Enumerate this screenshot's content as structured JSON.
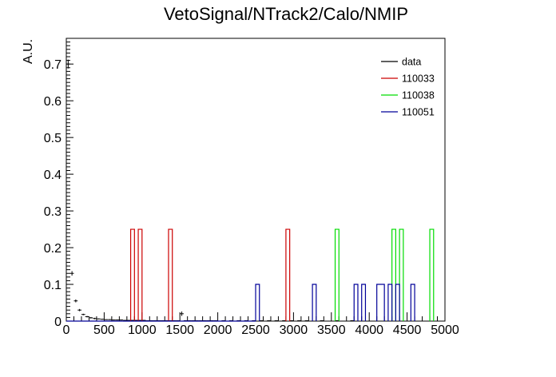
{
  "chart_data": {
    "type": "line",
    "title": "VetoSignal/NTrack2/Calo/NMIP",
    "xlabel": "",
    "ylabel": "A.U.",
    "xlim": [
      0,
      5000
    ],
    "ylim": [
      0,
      0.77
    ],
    "xticks": [
      "0",
      "500",
      "1000",
      "1500",
      "2000",
      "2500",
      "3000",
      "3500",
      "4000",
      "4500",
      "5000"
    ],
    "yticks": [
      "0",
      "0.1",
      "0.2",
      "0.3",
      "0.4",
      "0.5",
      "0.6",
      "0.7"
    ],
    "legend_position": "top-right",
    "series": [
      {
        "name": "data",
        "kind": "points",
        "color": "#000000",
        "bin_width": 50,
        "x": [
          25,
          75,
          125,
          175,
          225,
          275,
          325,
          375,
          425,
          475,
          525,
          575,
          625,
          675,
          725,
          775,
          825,
          875,
          925,
          975,
          1025,
          1075,
          1125,
          1175,
          1225,
          1275,
          1325,
          1375,
          1425,
          1475,
          1525,
          1575,
          1625,
          1675,
          1725,
          1775,
          1825,
          1875,
          1925,
          1975,
          2075,
          2175,
          2275,
          2375,
          2475,
          2575,
          2675,
          2775,
          2875,
          2975,
          3075,
          3175,
          3375,
          3575,
          3775
        ],
        "y": [
          0.7,
          0.13,
          0.055,
          0.03,
          0.018,
          0.012,
          0.009,
          0.007,
          0.006,
          0.005,
          0.004,
          0.004,
          0.003,
          0.003,
          0.003,
          0.002,
          0.002,
          0.002,
          0.002,
          0.002,
          0.002,
          0.001,
          0.001,
          0.001,
          0.001,
          0.001,
          0.001,
          0.001,
          0.001,
          0.001,
          0.02,
          0.001,
          0.001,
          0.001,
          0.001,
          0.001,
          0.001,
          0.001,
          0.001,
          0.001,
          0.001,
          0.001,
          0.001,
          0.001,
          0.001,
          0.001,
          0.001,
          0.001,
          0.001,
          0.001,
          0.001,
          0.001,
          0.001,
          0.001,
          0.001
        ],
        "yerr": [
          0.012,
          0.006,
          0.004,
          0.003,
          0.002,
          0.002,
          0.002,
          0.002,
          0.001,
          0.001,
          0.001,
          0.001,
          0.001,
          0.001,
          0.001,
          0.001,
          0.001,
          0.001,
          0.001,
          0.001,
          0.001,
          0.001,
          0.001,
          0.001,
          0.001,
          0.001,
          0.001,
          0.001,
          0.001,
          0.001,
          0.006,
          0.001,
          0.001,
          0.001,
          0.001,
          0.001,
          0.001,
          0.001,
          0.001,
          0.001,
          0.001,
          0.001,
          0.001,
          0.001,
          0.001,
          0.001,
          0.001,
          0.001,
          0.001,
          0.001,
          0.001,
          0.001,
          0.001,
          0.001,
          0.001
        ]
      },
      {
        "name": "110033",
        "kind": "hist",
        "color": "#cc0000",
        "bins": [
          [
            850,
            900,
            0.25
          ],
          [
            950,
            1000,
            0.25
          ],
          [
            1350,
            1400,
            0.25
          ],
          [
            2900,
            2950,
            0.25
          ]
        ]
      },
      {
        "name": "110038",
        "kind": "hist",
        "color": "#00dd00",
        "bins": [
          [
            3550,
            3600,
            0.25
          ],
          [
            4300,
            4350,
            0.25
          ],
          [
            4400,
            4450,
            0.25
          ],
          [
            4800,
            4850,
            0.25
          ]
        ]
      },
      {
        "name": "110051",
        "kind": "hist",
        "color": "#000099",
        "bins": [
          [
            0,
            2500,
            0.0
          ],
          [
            2500,
            2550,
            0.1
          ],
          [
            3250,
            3300,
            0.1
          ],
          [
            3800,
            3850,
            0.1
          ],
          [
            3900,
            3950,
            0.1
          ],
          [
            4100,
            4200,
            0.1
          ],
          [
            4250,
            4300,
            0.1
          ],
          [
            4350,
            4400,
            0.1
          ],
          [
            4550,
            4600,
            0.1
          ]
        ]
      }
    ]
  }
}
